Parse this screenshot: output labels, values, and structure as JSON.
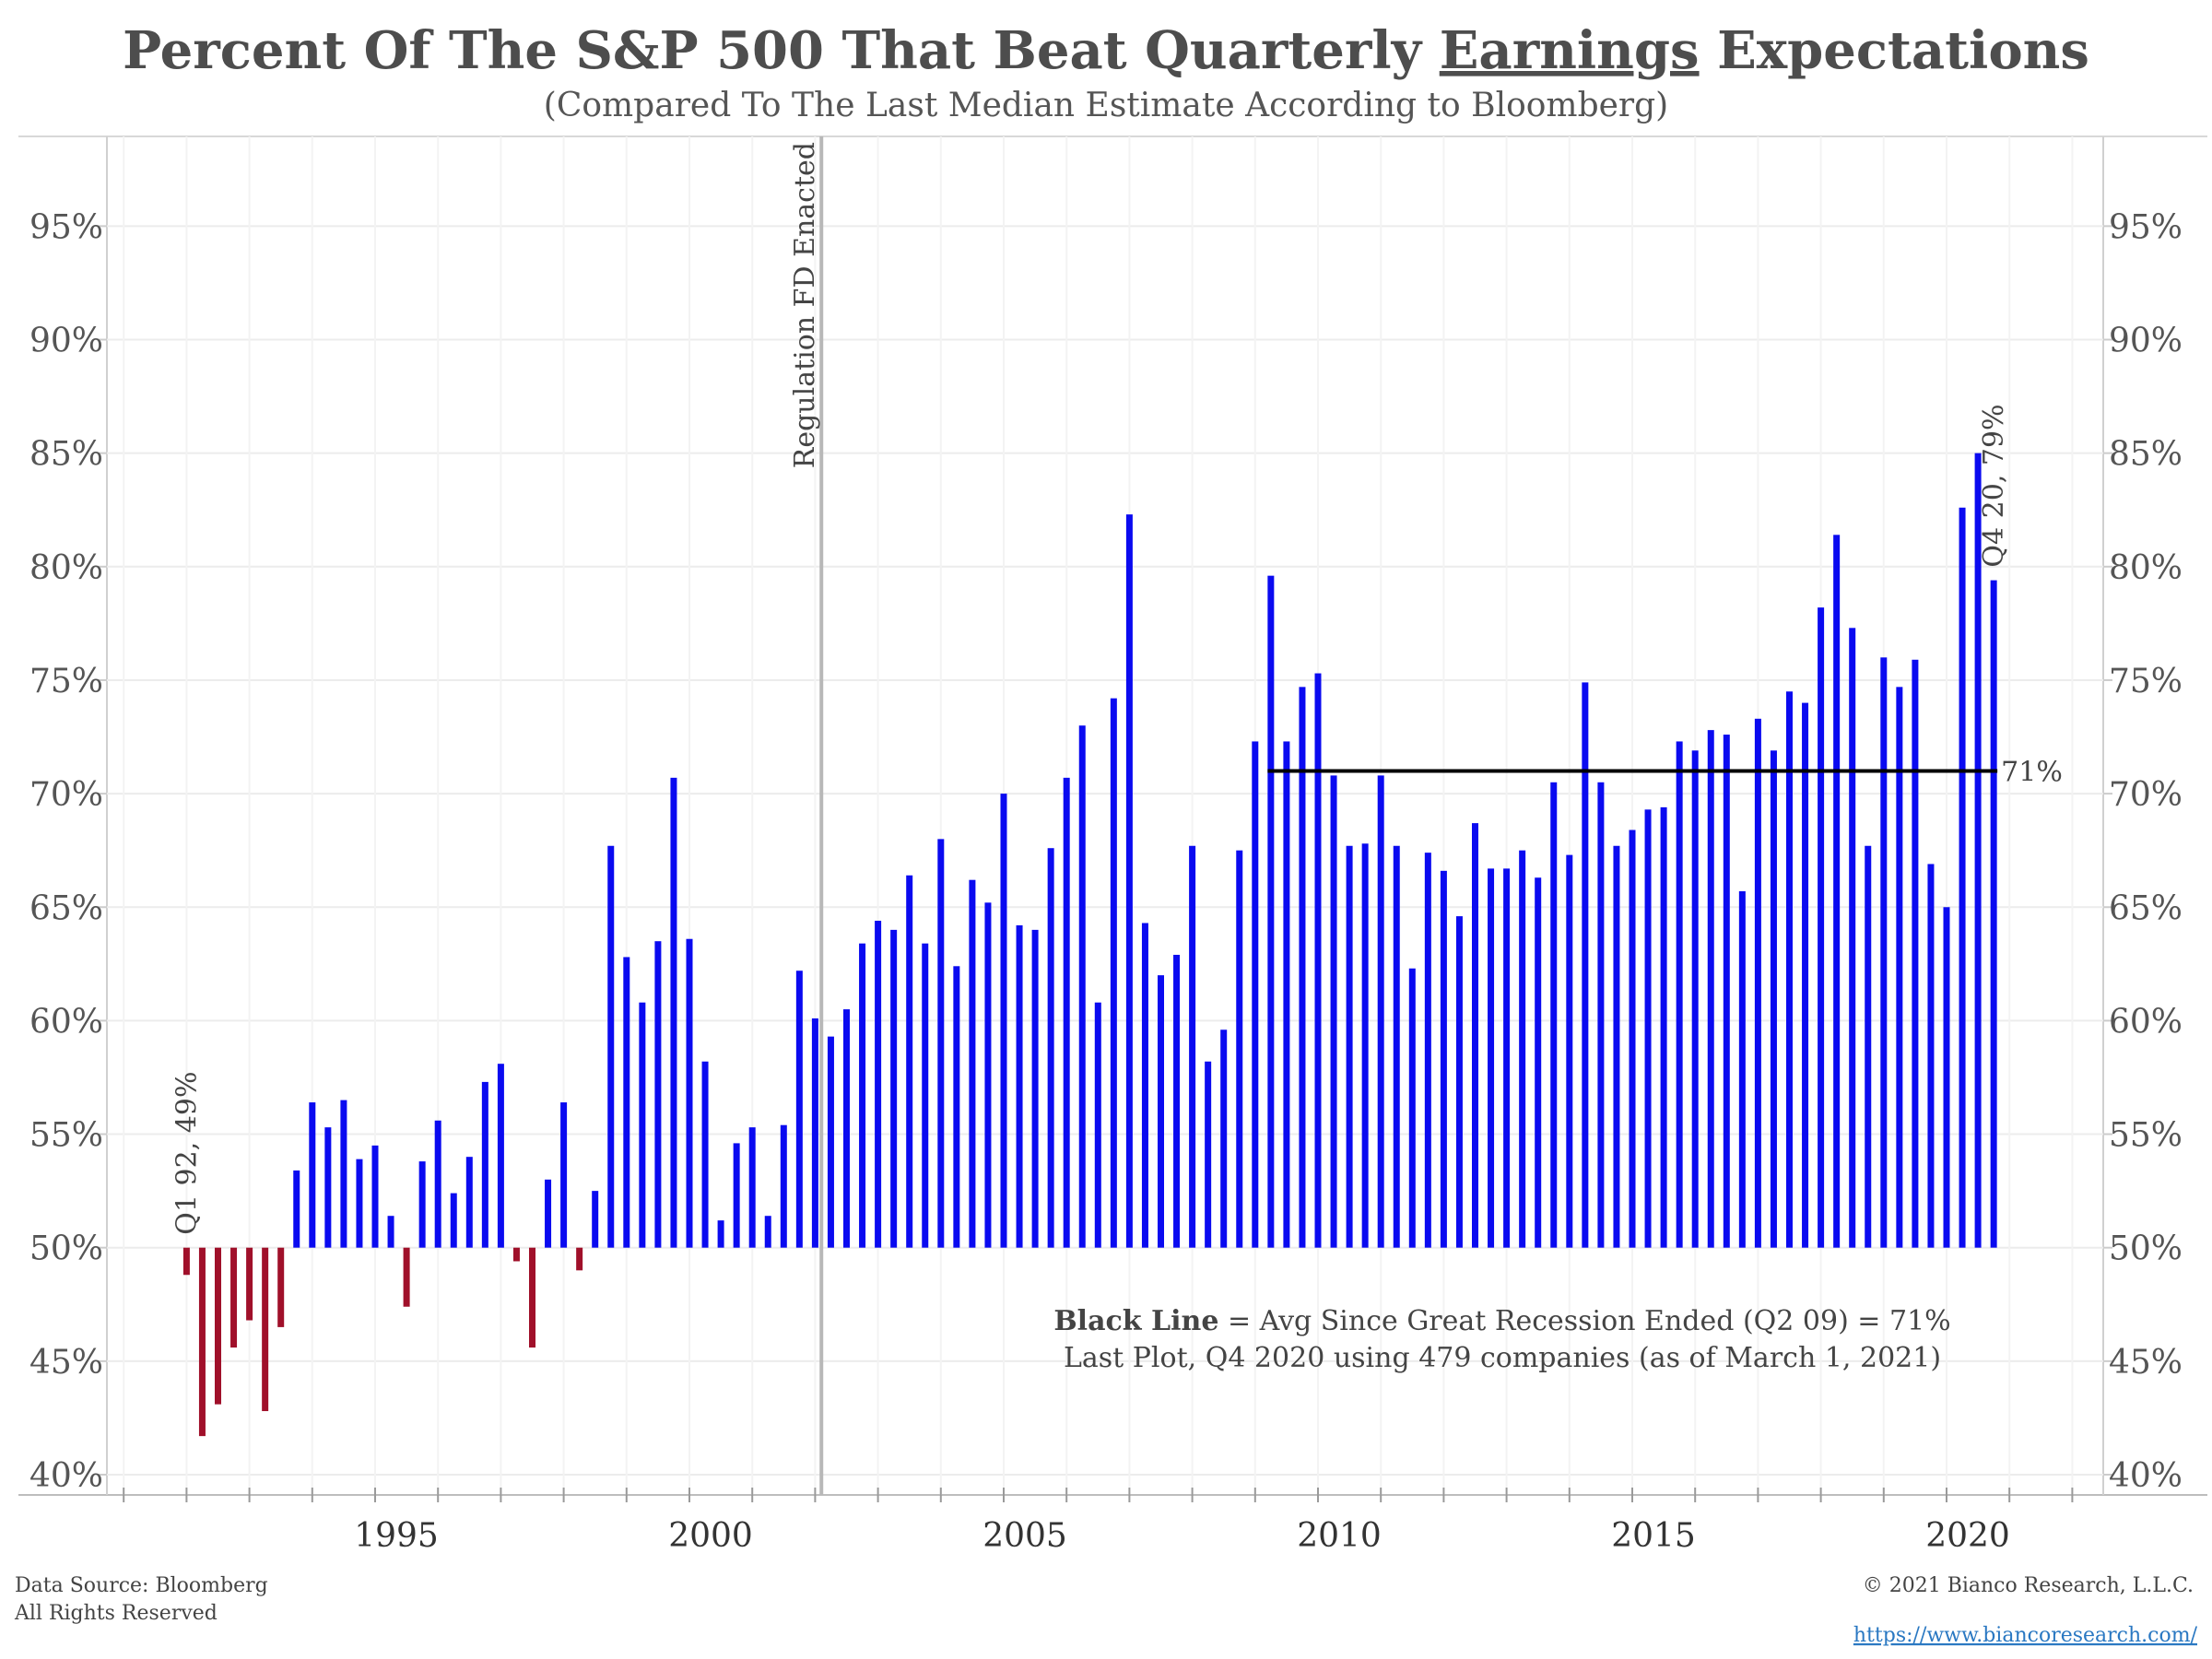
{
  "header": {
    "title_pre": "Percent Of The S&P 500 That Beat Quarterly ",
    "title_underlined": "Earnings",
    "title_post": " Expectations",
    "subtitle": "(Compared To The Last Median Estimate According to Bloomberg)"
  },
  "annotations": {
    "regulation_fd": "Regulation FD Enacted",
    "first_point": "Q1 92, 49%",
    "last_point": "Q4 20, 79%",
    "avg_line_label": "71%",
    "note_bold": "Black Line",
    "note_rest": " = Avg Since Great Recession Ended (Q2 09) = 71%",
    "note_line2": "Last Plot, Q4 2020 using 479 companies (as of March 1, 2021)"
  },
  "footer": {
    "source": "Data Source: Bloomberg",
    "rights": "All Rights Reserved",
    "copyright": "© 2021 Bianco Research, L.L.C.",
    "url": "https://www.biancoresearch.com/"
  },
  "colors": {
    "above": "#0a0af0",
    "below": "#a0102a",
    "avg_line": "#000000",
    "reg_line": "#b8b8b8",
    "grid": "#ececec",
    "first_label": "#a0102a",
    "last_label": "#1f1fe0"
  },
  "chart_data": {
    "type": "bar",
    "baseline": 50,
    "ylim": [
      40,
      97.5
    ],
    "yticks": [
      40,
      45,
      50,
      55,
      60,
      65,
      70,
      75,
      80,
      85,
      90,
      95
    ],
    "ytick_labels": [
      "40%",
      "45%",
      "50%",
      "55%",
      "60%",
      "65%",
      "70%",
      "75%",
      "80%",
      "85%",
      "90%",
      "95%"
    ],
    "xlim": [
      1990.75,
      2022.5
    ],
    "xticks_labeled": [
      1995,
      2000,
      2005,
      2010,
      2015,
      2020
    ],
    "xticks_minor": [
      1991,
      1992,
      1993,
      1994,
      1996,
      1997,
      1998,
      1999,
      2001,
      2002,
      2003,
      2004,
      2006,
      2007,
      2008,
      2009,
      2011,
      2012,
      2013,
      2014,
      2016,
      2017,
      2018,
      2019,
      2021,
      2022
    ],
    "regulation_fd_x": 2002.1,
    "avg_line": {
      "value": 71,
      "start": "Q2 09",
      "end": "Q4 20"
    },
    "start_quarter": "Q1 92",
    "end_quarter": "Q4 20",
    "values": [
      48.8,
      41.7,
      43.1,
      45.6,
      46.8,
      42.8,
      46.5,
      53.4,
      56.4,
      55.3,
      56.5,
      53.9,
      54.5,
      51.4,
      47.4,
      53.8,
      55.6,
      52.4,
      54.0,
      57.3,
      58.1,
      49.4,
      45.6,
      53.0,
      56.4,
      49.0,
      52.5,
      67.7,
      62.8,
      60.8,
      63.5,
      70.7,
      63.6,
      58.2,
      51.2,
      54.6,
      55.3,
      51.4,
      55.4,
      62.2,
      60.1,
      59.3,
      60.5,
      63.4,
      64.4,
      64.0,
      66.4,
      63.4,
      68.0,
      62.4,
      66.2,
      65.2,
      70.0,
      64.2,
      64.0,
      67.6,
      70.7,
      73.0,
      60.8,
      74.2,
      82.3,
      64.3,
      62.0,
      62.9,
      67.7,
      58.2,
      59.6,
      67.5,
      72.3,
      79.6,
      72.3,
      74.7,
      75.3,
      70.8,
      67.7,
      67.8,
      70.8,
      67.7,
      62.3,
      67.4,
      66.6,
      64.6,
      68.7,
      66.7,
      66.7,
      67.5,
      66.3,
      70.5,
      67.3,
      74.9,
      70.5,
      67.7,
      68.4,
      69.3,
      69.4,
      72.3,
      71.9,
      72.8,
      72.6,
      65.7,
      73.3,
      71.9,
      74.5,
      74.0,
      78.2,
      81.4,
      77.3,
      67.7,
      76.0,
      74.7,
      75.9,
      66.9,
      65.0,
      82.6,
      85.0,
      79.4
    ]
  }
}
